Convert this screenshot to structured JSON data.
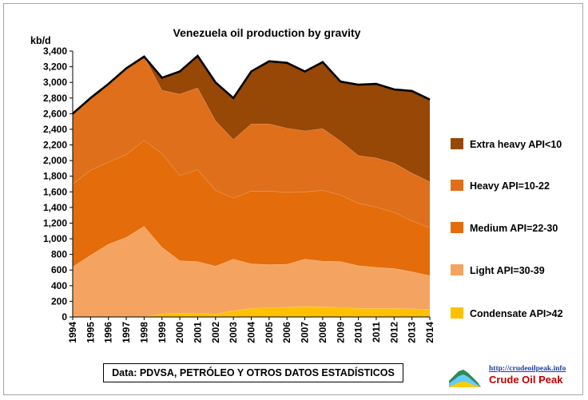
{
  "chart_data": {
    "type": "area",
    "stacked": true,
    "title": "Venezuela oil production by gravity",
    "ylabel": "kb/d",
    "xlabel": "",
    "ylim": [
      0,
      3400
    ],
    "ytick_step": 200,
    "yticks": [
      "0",
      "200",
      "400",
      "600",
      "800",
      "1,000",
      "1,200",
      "1,400",
      "1,600",
      "1,800",
      "2,000",
      "2,200",
      "2,400",
      "2,600",
      "2,800",
      "3,000",
      "3,200",
      "3,400"
    ],
    "x": [
      1994,
      1995,
      1996,
      1997,
      1998,
      1999,
      2000,
      2001,
      2002,
      2003,
      2004,
      2005,
      2006,
      2007,
      2008,
      2009,
      2010,
      2011,
      2012,
      2013,
      2014
    ],
    "grid": false,
    "legend_position": "right",
    "series": [
      {
        "name": "Condensate API>42",
        "color": "#ffc000",
        "values": [
          0,
          0,
          0,
          0,
          0,
          40,
          50,
          45,
          40,
          80,
          110,
          120,
          125,
          135,
          130,
          120,
          110,
          110,
          110,
          105,
          100
        ]
      },
      {
        "name": "Light API=30-39",
        "color": "#f4a460",
        "values": [
          640,
          790,
          930,
          1020,
          1160,
          850,
          670,
          665,
          610,
          660,
          570,
          550,
          550,
          605,
          585,
          590,
          545,
          525,
          510,
          475,
          430
        ]
      },
      {
        "name": "Medium API=22-30",
        "color": "#e46c0a",
        "values": [
          1060,
          1090,
          1050,
          1060,
          1100,
          1200,
          1090,
          1175,
          970,
          780,
          930,
          940,
          920,
          860,
          905,
          850,
          800,
          770,
          720,
          650,
          610
        ]
      },
      {
        "name": "Heavy API=10-22",
        "color": "#df6f1a",
        "values": [
          900,
          920,
          1000,
          1100,
          1070,
          810,
          1040,
          1045,
          890,
          750,
          860,
          860,
          820,
          780,
          790,
          690,
          610,
          630,
          630,
          610,
          590
        ]
      },
      {
        "name": "Extra heavy API<10",
        "color": "#974706",
        "values": [
          0,
          0,
          0,
          0,
          0,
          160,
          290,
          410,
          490,
          530,
          670,
          800,
          835,
          760,
          850,
          760,
          905,
          945,
          940,
          1050,
          1050
        ]
      }
    ]
  },
  "source_note": "Data: PDVSA, PETRÓLEO Y OTROS DATOS ESTADÍSTICOS",
  "logo": {
    "url": "http://crudeoilpeak.info",
    "name": "Crude Oil Peak"
  }
}
